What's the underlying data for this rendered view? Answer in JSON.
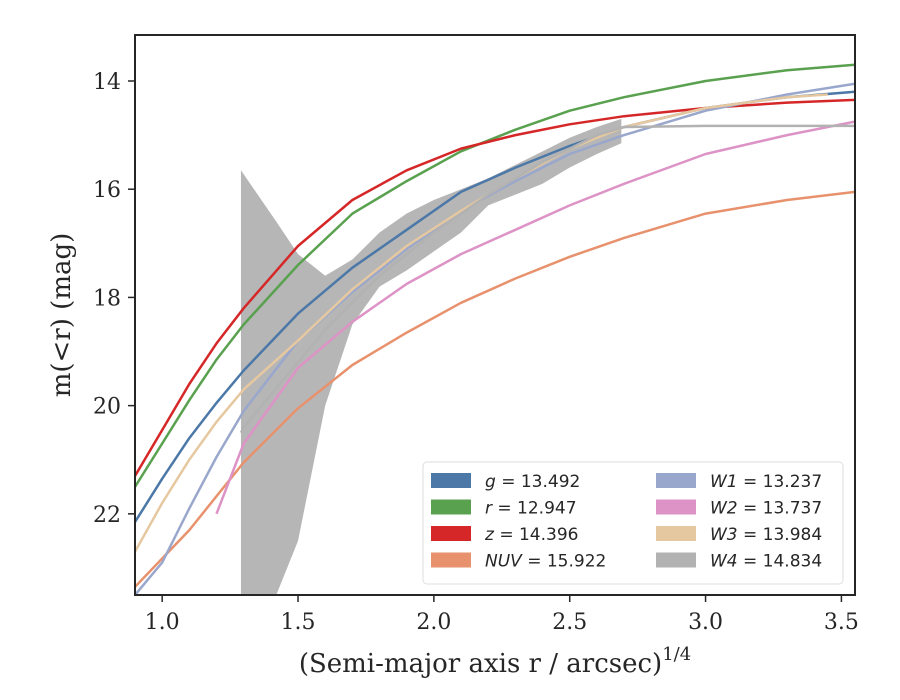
{
  "chart_data": {
    "type": "line",
    "xlabel": "(Semi-major axis r / arcsec)",
    "xlabel_superscript": "1/4",
    "ylabel": "m(<r) (mag)",
    "xlim": [
      0.9,
      3.55
    ],
    "ylim": [
      23.5,
      13.15
    ],
    "y_inverted": true,
    "grid": false,
    "legend_position": "lower-right",
    "x_ticks": [
      "1.0",
      "1.5",
      "2.0",
      "2.5",
      "3.0",
      "3.5"
    ],
    "y_ticks": [
      "14",
      "16",
      "18",
      "20",
      "22"
    ],
    "series": [
      {
        "name": "g",
        "value": "13.492",
        "color": "#4c78a8",
        "x": [
          0.9,
          1.0,
          1.1,
          1.2,
          1.3,
          1.5,
          1.7,
          1.9,
          2.1,
          2.3,
          2.5,
          2.7,
          3.0,
          3.3,
          3.55
        ],
        "y": [
          22.15,
          21.35,
          20.6,
          19.95,
          19.35,
          18.3,
          17.45,
          16.75,
          16.05,
          15.6,
          15.2,
          14.85,
          14.5,
          14.3,
          14.2
        ]
      },
      {
        "name": "r",
        "value": "12.947",
        "color": "#59a14f",
        "x": [
          0.9,
          1.0,
          1.1,
          1.2,
          1.3,
          1.5,
          1.7,
          1.9,
          2.1,
          2.3,
          2.5,
          2.7,
          3.0,
          3.3,
          3.55
        ],
        "y": [
          21.5,
          20.7,
          19.9,
          19.15,
          18.5,
          17.4,
          16.45,
          15.85,
          15.3,
          14.9,
          14.55,
          14.3,
          14.0,
          13.8,
          13.7
        ]
      },
      {
        "name": "z",
        "value": "14.396",
        "color": "#d62728",
        "x": [
          0.9,
          1.0,
          1.1,
          1.2,
          1.3,
          1.5,
          1.7,
          1.9,
          2.1,
          2.3,
          2.5,
          2.7,
          3.0,
          3.3,
          3.55
        ],
        "y": [
          21.3,
          20.45,
          19.6,
          18.85,
          18.2,
          17.05,
          16.2,
          15.65,
          15.25,
          15.0,
          14.8,
          14.65,
          14.5,
          14.4,
          14.35
        ]
      },
      {
        "name": "NUV",
        "value": "15.922",
        "color": "#e8916d",
        "x": [
          0.9,
          1.1,
          1.3,
          1.5,
          1.7,
          1.9,
          2.1,
          2.3,
          2.5,
          2.7,
          2.9,
          3.0,
          3.3,
          3.55
        ],
        "y": [
          23.35,
          22.3,
          21.05,
          20.05,
          19.25,
          18.65,
          18.1,
          17.65,
          17.25,
          16.9,
          16.6,
          16.45,
          16.2,
          16.05
        ]
      },
      {
        "name": "W1",
        "value": "13.237",
        "color": "#9aa7cc",
        "x": [
          0.9,
          1.0,
          1.1,
          1.2,
          1.3,
          1.5,
          1.7,
          1.9,
          2.1,
          2.3,
          2.5,
          2.7,
          3.0,
          3.3,
          3.55
        ],
        "y": [
          23.5,
          22.9,
          21.9,
          20.95,
          20.1,
          18.8,
          17.9,
          17.1,
          16.4,
          15.85,
          15.35,
          15.0,
          14.55,
          14.25,
          14.05
        ]
      },
      {
        "name": "W2",
        "value": "13.737",
        "color": "#dd93c6",
        "x": [
          1.2,
          1.3,
          1.5,
          1.7,
          1.9,
          2.1,
          2.3,
          2.5,
          2.7,
          3.0,
          3.3,
          3.55
        ],
        "y": [
          22.0,
          20.7,
          19.3,
          18.45,
          17.75,
          17.2,
          16.75,
          16.3,
          15.9,
          15.35,
          15.0,
          14.75
        ]
      },
      {
        "name": "W3",
        "value": "13.984",
        "color": "#e6c8a0",
        "x": [
          0.9,
          1.0,
          1.1,
          1.2,
          1.3,
          1.5,
          1.7,
          1.9,
          2.1,
          2.3,
          2.5,
          2.7,
          3.0,
          3.3,
          3.45
        ],
        "y": [
          22.7,
          21.8,
          21.0,
          20.3,
          19.7,
          18.8,
          17.85,
          17.05,
          16.4,
          15.8,
          15.25,
          14.85,
          14.5,
          14.3,
          14.25
        ]
      },
      {
        "name": "W4",
        "value": "14.834",
        "color": "#b2b2b2",
        "x": [
          1.29,
          1.3,
          1.4,
          1.5,
          1.6,
          1.7,
          1.8,
          1.9,
          2.0,
          2.1,
          2.2,
          2.3,
          2.4,
          2.5,
          2.6,
          2.7,
          3.0,
          3.55
        ],
        "y": [
          20.5,
          20.4,
          19.8,
          19.2,
          18.6,
          18.1,
          17.6,
          17.2,
          16.8,
          16.45,
          16.1,
          15.8,
          15.5,
          15.25,
          15.0,
          14.85,
          14.83,
          14.83
        ],
        "band_x": [
          1.29,
          1.42,
          1.5,
          1.6,
          1.7,
          1.8,
          1.9,
          2.0,
          2.1,
          2.2,
          2.3,
          2.4,
          2.5,
          2.6,
          2.69
        ],
        "band_upper": [
          15.65,
          16.6,
          17.2,
          17.6,
          17.3,
          16.8,
          16.45,
          16.2,
          16.0,
          15.8,
          15.55,
          15.3,
          15.05,
          14.85,
          14.7
        ],
        "band_lower": [
          23.5,
          23.5,
          22.5,
          20.0,
          18.5,
          17.8,
          17.5,
          17.15,
          16.8,
          16.3,
          16.1,
          15.9,
          15.6,
          15.35,
          15.15
        ]
      }
    ]
  }
}
